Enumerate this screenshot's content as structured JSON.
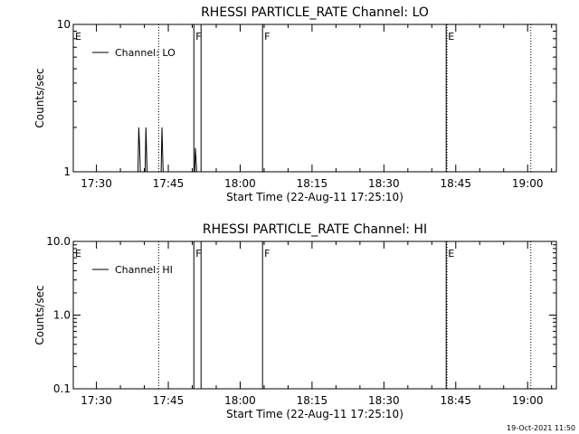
{
  "footer": {
    "timestamp": "19-Oct-2021 11:50"
  },
  "chart_data": [
    {
      "type": "line",
      "title": "RHESSI PARTICLE_RATE Channel: LO",
      "xlabel": "Start Time (22-Aug-11 17:25:10)",
      "ylabel": "Counts/sec",
      "y_scale": "log",
      "xlim": [
        "17:25:10",
        "19:06:00"
      ],
      "ylim": [
        1,
        10
      ],
      "x_tick_labels": [
        "17:30",
        "17:45",
        "18:00",
        "18:15",
        "18:30",
        "18:45",
        "19:00"
      ],
      "y_tick_labels": [
        {
          "value": 1,
          "label": "1"
        },
        {
          "value": 10,
          "label": "10"
        }
      ],
      "legend": {
        "entries": [
          "Channel: LO"
        ],
        "position": "top-left"
      },
      "series": [
        {
          "name": "Channel: LO",
          "points": [
            [
              "17:38:40",
              1
            ],
            [
              "17:38:50",
              2
            ],
            [
              "17:39:00",
              1.5
            ],
            [
              "17:39:10",
              1
            ],
            [
              "17:40:10",
              1
            ],
            [
              "17:40:20",
              2
            ],
            [
              "17:40:35",
              1
            ],
            [
              "17:43:30",
              1
            ],
            [
              "17:43:40",
              2
            ],
            [
              "17:43:55",
              1
            ],
            [
              "17:50:30",
              1
            ],
            [
              "17:50:40",
              1.45
            ],
            [
              "17:50:55",
              1
            ]
          ]
        }
      ],
      "flags": [
        {
          "label": "E",
          "time": "17:25:10",
          "style": "dotted"
        },
        {
          "label": "",
          "time": "17:43:00",
          "style": "dotted"
        },
        {
          "label": "F",
          "time": "17:50:20",
          "style": "solid"
        },
        {
          "label": "",
          "time": "17:51:50",
          "style": "solid"
        },
        {
          "label": "F",
          "time": "18:04:40",
          "style": "solid"
        },
        {
          "label": "E",
          "time": "18:43:00",
          "style": "solid"
        },
        {
          "label": "",
          "time": "18:43:10",
          "style": "dotted"
        },
        {
          "label": "",
          "time": "19:00:40",
          "style": "dotted"
        }
      ]
    },
    {
      "type": "line",
      "title": "RHESSI PARTICLE_RATE Channel: HI",
      "xlabel": "Start Time (22-Aug-11 17:25:10)",
      "ylabel": "Counts/sec",
      "y_scale": "log",
      "xlim": [
        "17:25:10",
        "19:06:00"
      ],
      "ylim": [
        0.1,
        10
      ],
      "x_tick_labels": [
        "17:30",
        "17:45",
        "18:00",
        "18:15",
        "18:30",
        "18:45",
        "19:00"
      ],
      "y_tick_labels": [
        {
          "value": 0.1,
          "label": "0.1"
        },
        {
          "value": 1,
          "label": "1.0"
        },
        {
          "value": 10,
          "label": "10.0"
        }
      ],
      "legend": {
        "entries": [
          "Channel: HI"
        ],
        "position": "top-left"
      },
      "series": [
        {
          "name": "Channel: HI",
          "points": []
        }
      ],
      "flags": [
        {
          "label": "E",
          "time": "17:25:10",
          "style": "dotted"
        },
        {
          "label": "",
          "time": "17:43:00",
          "style": "dotted"
        },
        {
          "label": "F",
          "time": "17:50:20",
          "style": "solid"
        },
        {
          "label": "",
          "time": "17:51:50",
          "style": "solid"
        },
        {
          "label": "F",
          "time": "18:04:40",
          "style": "solid"
        },
        {
          "label": "E",
          "time": "18:43:00",
          "style": "solid"
        },
        {
          "label": "",
          "time": "18:43:10",
          "style": "dotted"
        },
        {
          "label": "",
          "time": "19:00:40",
          "style": "dotted"
        }
      ]
    }
  ]
}
